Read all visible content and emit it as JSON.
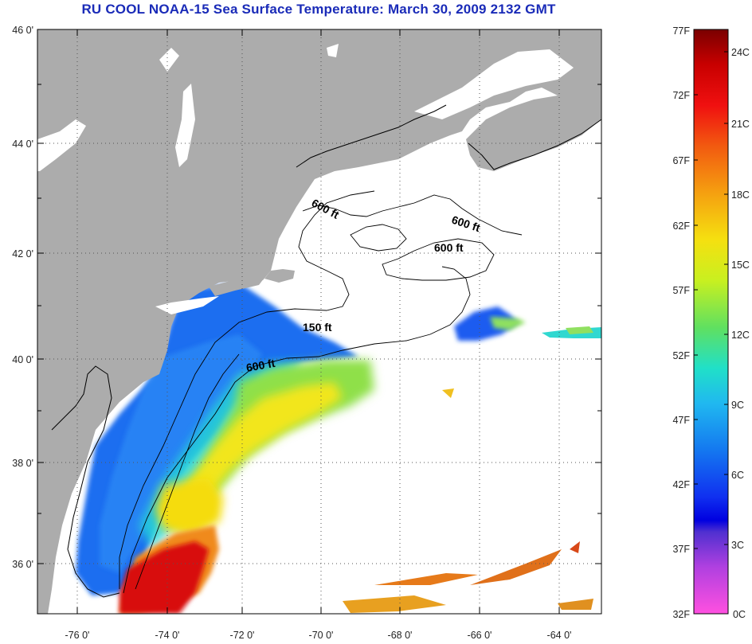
{
  "title": "RU COOL  NOAA-15  Sea Surface Temperature:  March 30, 2009 2132 GMT",
  "lat_labels": [
    "46 0'",
    "44 0'",
    "42 0'",
    "40 0'",
    "38 0'",
    "36 0'"
  ],
  "lon_labels": [
    "-76 0'",
    "-74 0'",
    "-72 0'",
    "-70 0'",
    "-68 0'",
    "-66 0'",
    "-64 0'"
  ],
  "contour_labels": [
    "600 ft",
    "600 ft",
    "600 ft",
    "150 ft",
    "600 ft"
  ],
  "colorbar": {
    "fahrenheit": [
      "77F",
      "72F",
      "67F",
      "62F",
      "57F",
      "52F",
      "47F",
      "42F",
      "37F",
      "32F"
    ],
    "celsius": [
      "24C",
      "21C",
      "18C",
      "15C",
      "12C",
      "9C",
      "6C",
      "3C",
      "0C"
    ]
  },
  "colors": {
    "land": "#acacac",
    "ocean_no_data": "#ffffff",
    "title": "#1a2bb8"
  }
}
